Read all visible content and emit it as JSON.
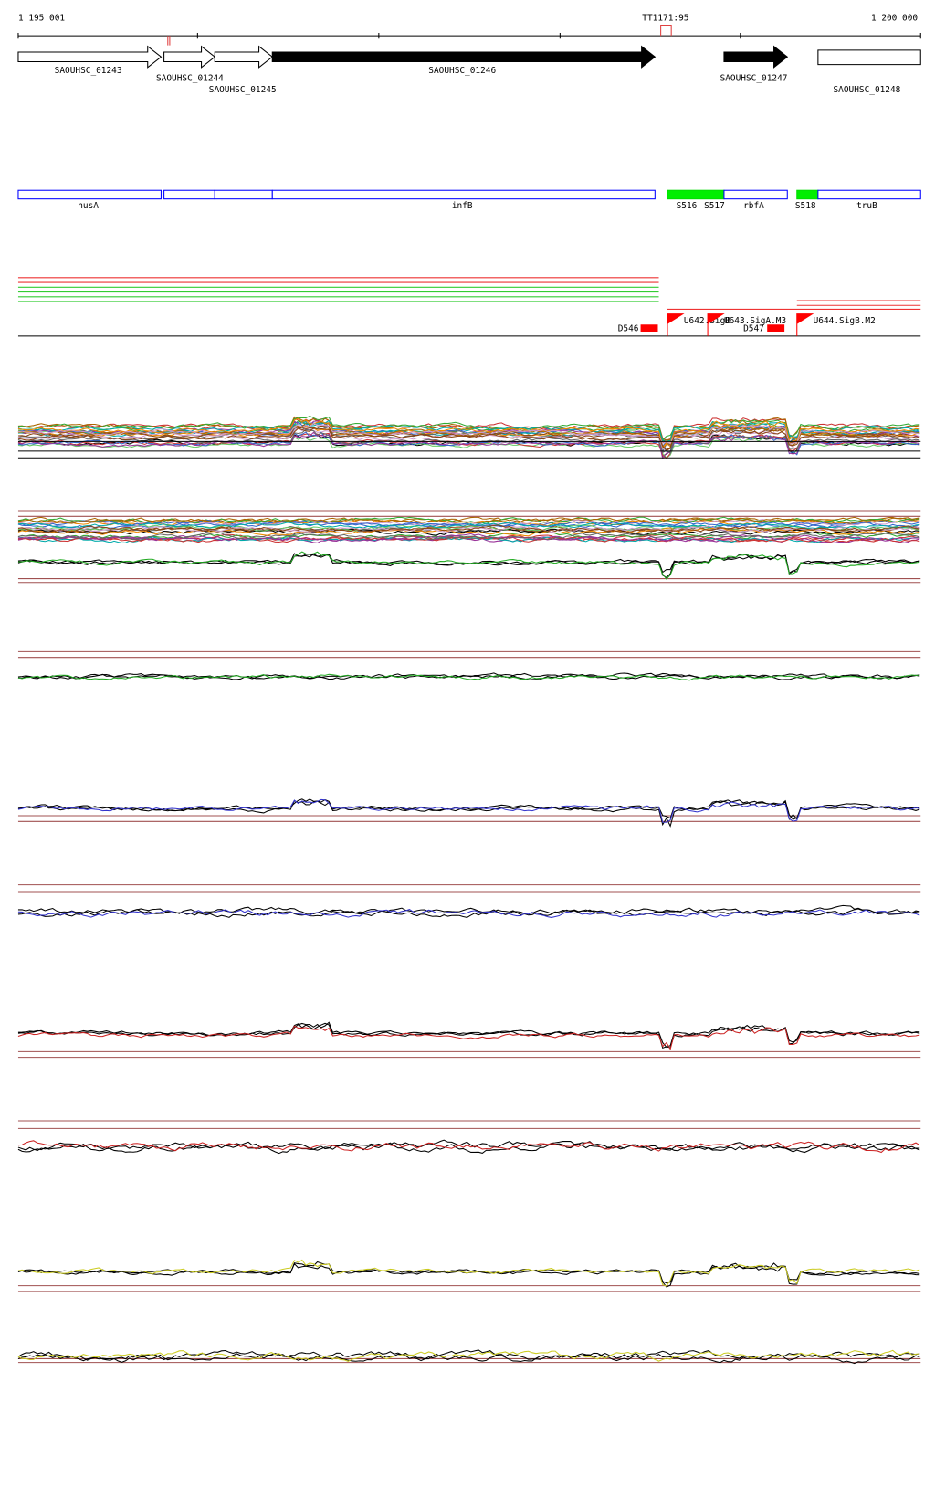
{
  "ruler": {
    "start": "1 195 001",
    "end": "1 200 000",
    "marker": "TT1171:95"
  },
  "genes": [
    "SAOUHSC_01243",
    "SAOUHSC_01244",
    "SAOUHSC_01245",
    "SAOUHSC_01246",
    "SAOUHSC_01247",
    "SAOUHSC_01248"
  ],
  "regions": [
    "nusA",
    "infB",
    "S516",
    "S517",
    "rbfA",
    "S518",
    "truB"
  ],
  "features": [
    "D546",
    "U642.SigB",
    "U643.SigA.M3",
    "D547",
    "U644.SigB.M2"
  ]
}
